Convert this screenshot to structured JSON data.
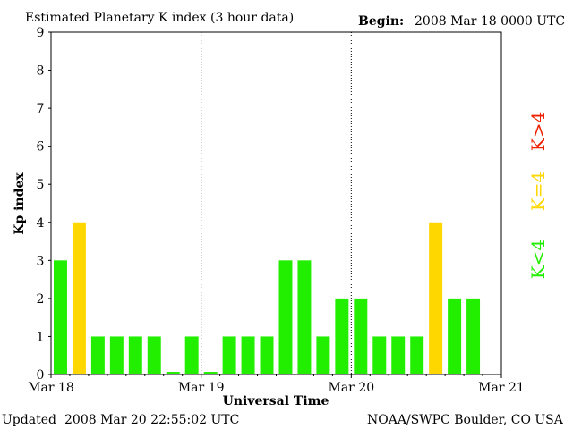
{
  "header": {
    "title": "Estimated Planetary K index (3 hour data)",
    "begin_label": "Begin:",
    "begin_value": "2008 Mar 18 0000 UTC"
  },
  "footer": {
    "updated_label": "Updated",
    "updated_value": "2008 Mar 20 22:55:02 UTC",
    "credit": "NOAA/SWPC Boulder, CO USA"
  },
  "legend": {
    "items": [
      {
        "label": "K<4",
        "color": "#22ee00"
      },
      {
        "label": "K=4",
        "color": "#ffd700"
      },
      {
        "label": "K>4",
        "color": "#ee2200"
      }
    ]
  },
  "chart_data": {
    "type": "bar",
    "xlabel": "Universal Time",
    "ylabel": "Kp index",
    "ylim": [
      0,
      9
    ],
    "yticks": [
      "0",
      "1",
      "2",
      "3",
      "4",
      "5",
      "6",
      "7",
      "8",
      "9"
    ],
    "xticks": [
      "Mar 18",
      "Mar 19",
      "Mar 20",
      "Mar 21"
    ],
    "interval_hours": 3,
    "values": [
      3,
      4,
      1,
      1,
      1,
      1,
      0.07,
      1,
      0.07,
      1,
      1,
      1,
      3,
      3,
      1,
      2,
      2,
      1,
      1,
      1,
      4,
      2,
      2
    ],
    "colors": {
      "below4": "#22ee00",
      "equal4": "#ffd700",
      "above4": "#ee2200"
    },
    "grid": "vertical dotted lines at day boundaries"
  }
}
